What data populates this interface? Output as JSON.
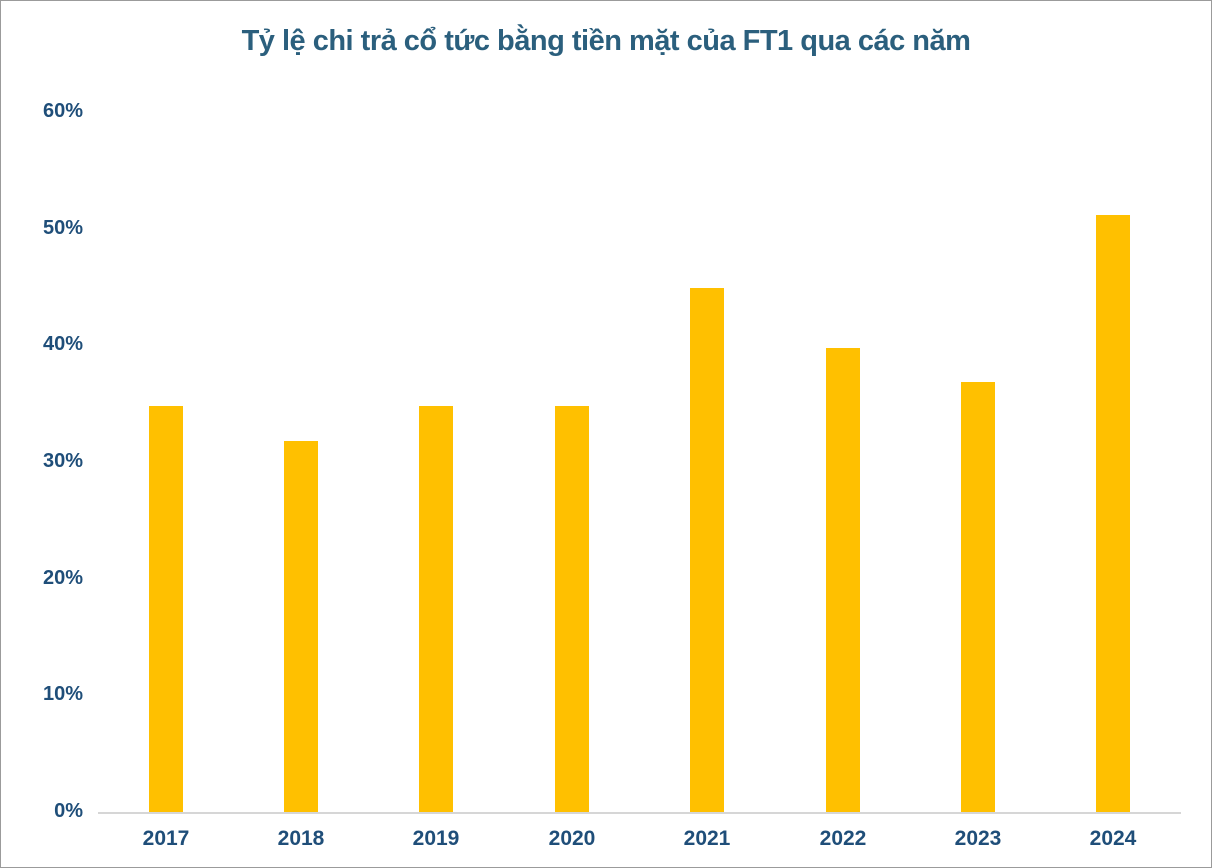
{
  "page": {
    "background": "#ffffff",
    "border_color": "#9b9b9b"
  },
  "chart_data": {
    "type": "bar",
    "title": "Tỷ lệ chi trả cổ tức bằng tiền mặt của FT1 qua các năm",
    "categories": [
      "2017",
      "2018",
      "2019",
      "2020",
      "2021",
      "2022",
      "2023",
      "2024"
    ],
    "values": [
      34.8,
      31.8,
      34.8,
      34.8,
      44.9,
      39.8,
      36.9,
      51.2
    ],
    "unit": "%",
    "xlabel": "",
    "ylabel": "",
    "ylim": [
      0,
      60
    ],
    "y_ticks": [
      {
        "value": 0,
        "label": "0%"
      },
      {
        "value": 10,
        "label": "10%"
      },
      {
        "value": 20,
        "label": "20%"
      },
      {
        "value": 30,
        "label": "30%"
      },
      {
        "value": 40,
        "label": "40%"
      },
      {
        "value": 50,
        "label": "50%"
      },
      {
        "value": 60,
        "label": "60%"
      }
    ],
    "grid": false,
    "legend_position": "none",
    "colors": {
      "bar": "#FFC000",
      "title_text": "#2B5F7D",
      "axis_label_text": "#1F4E79",
      "axis_line": "#D6D6D6"
    }
  }
}
